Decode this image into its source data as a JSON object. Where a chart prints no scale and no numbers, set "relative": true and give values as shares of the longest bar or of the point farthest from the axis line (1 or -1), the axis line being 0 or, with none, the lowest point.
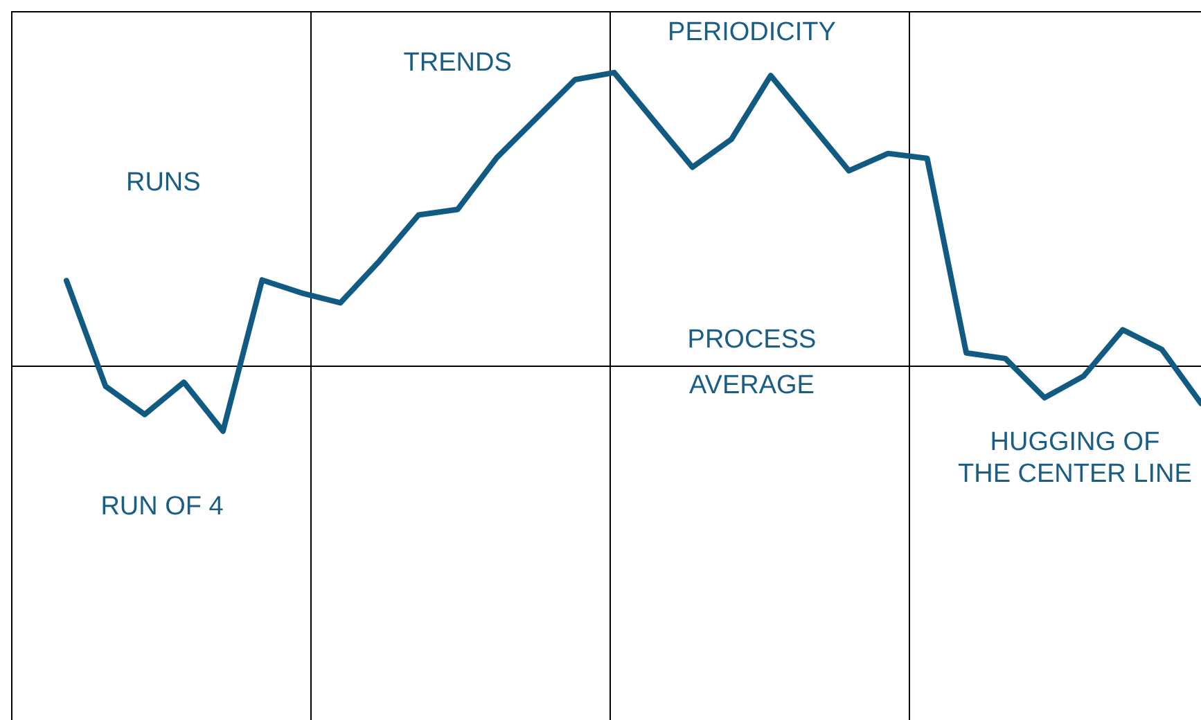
{
  "chart_data": {
    "type": "line",
    "relative": true,
    "marker": "none",
    "line_style": "solid",
    "categories": [
      null,
      null,
      null,
      null,
      null,
      null,
      null,
      null,
      null,
      null,
      null,
      null,
      null,
      null,
      null,
      null,
      null,
      null,
      null,
      null,
      null,
      null,
      null,
      null,
      null,
      null,
      null,
      null,
      null,
      null
    ],
    "series": [
      {
        "color": "#115b82",
        "values": [
          0.29,
          -0.071,
          -0.167,
          -0.057,
          -0.224,
          0.292,
          0.248,
          0.214,
          0.357,
          0.514,
          0.533,
          0.71,
          0.843,
          0.976,
          1,
          0.838,
          0.677,
          0.773,
          0.99,
          0.827,
          0.665,
          0.724,
          0.707,
          0.043,
          0.024,
          -0.11,
          -0.036,
          0.122,
          0.055,
          -0.129
        ]
      }
    ],
    "annotations": [
      "RUNS",
      "RUN OF 4",
      "TRENDS",
      "PERIODICITY",
      "PROCESS\nAVERAGE",
      "HUGGING OF\nTHE CENTER LINE"
    ]
  }
}
